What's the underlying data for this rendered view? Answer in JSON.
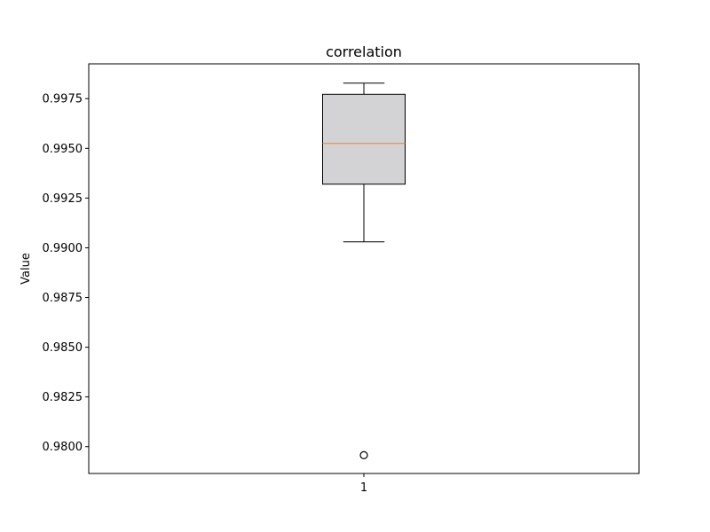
{
  "chart_data": {
    "type": "box",
    "title": "correlation",
    "xlabel": "",
    "ylabel": "Value",
    "categories": [
      "1"
    ],
    "ylim": [
      0.97865,
      0.99925
    ],
    "yticks": [
      0.98,
      0.9825,
      0.985,
      0.9875,
      0.99,
      0.9925,
      0.995,
      0.9975
    ],
    "ytick_labels": [
      "0.9800",
      "0.9825",
      "0.9850",
      "0.9875",
      "0.9900",
      "0.9925",
      "0.9950",
      "0.9975"
    ],
    "boxes": [
      {
        "category": "1",
        "whisker_low": 0.9903,
        "q1": 0.9932,
        "median": 0.99525,
        "q3": 0.99772,
        "whisker_high": 0.99828,
        "outliers": [
          0.97957
        ]
      }
    ],
    "grid": false,
    "colors": {
      "box_fill": "#d3d3d6",
      "box_edge": "#000000",
      "median": "#ff7f0e",
      "whisker": "#000000",
      "outlier": "#000000"
    }
  }
}
